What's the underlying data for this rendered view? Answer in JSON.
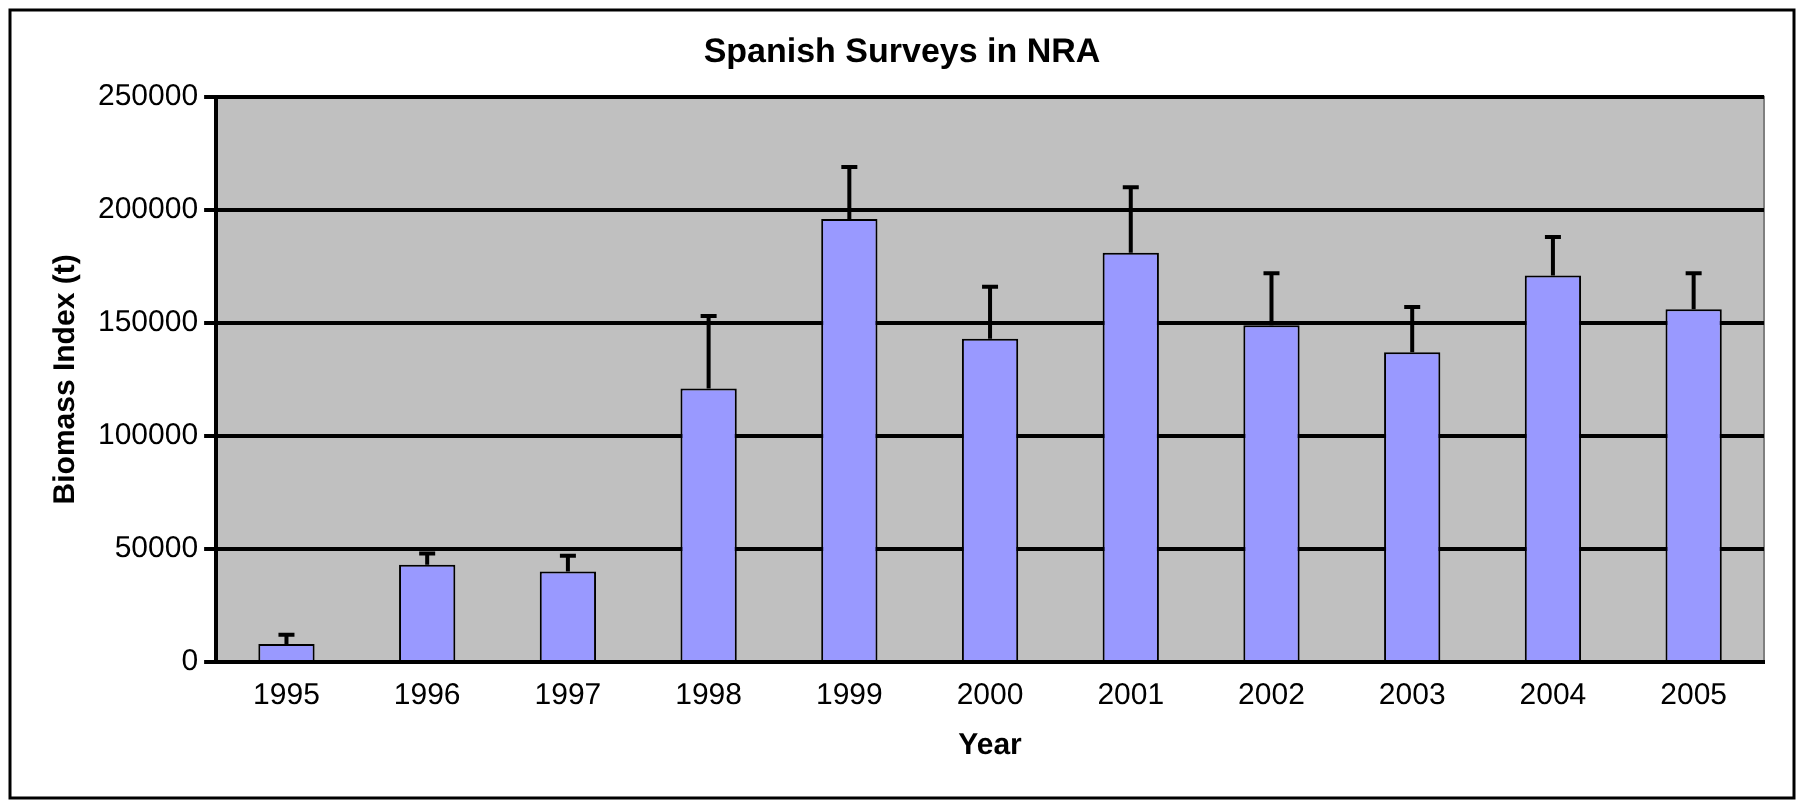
{
  "chart_data": {
    "type": "bar",
    "title": "Spanish Surveys in NRA",
    "xlabel": "Year",
    "ylabel": "Biomass Index (t)",
    "categories": [
      "1995",
      "1996",
      "1997",
      "1998",
      "1999",
      "2000",
      "2001",
      "2002",
      "2003",
      "2004",
      "2005"
    ],
    "values": [
      8000,
      43000,
      40000,
      121000,
      196000,
      143000,
      181000,
      149000,
      137000,
      171000,
      156000
    ],
    "errors": [
      [
        8000,
        12000
      ],
      [
        43000,
        48000
      ],
      [
        40000,
        47000
      ],
      [
        121000,
        153000
      ],
      [
        196000,
        219000
      ],
      [
        143000,
        166000
      ],
      [
        181000,
        210000
      ],
      [
        149000,
        172000
      ],
      [
        137000,
        157000
      ],
      [
        171000,
        188000
      ],
      [
        156000,
        172000
      ]
    ],
    "color": "#9999ff",
    "ylim": [
      0,
      250000
    ],
    "yticks": [
      0,
      50000,
      100000,
      150000,
      200000,
      250000
    ],
    "grid": "y",
    "legend": false
  }
}
